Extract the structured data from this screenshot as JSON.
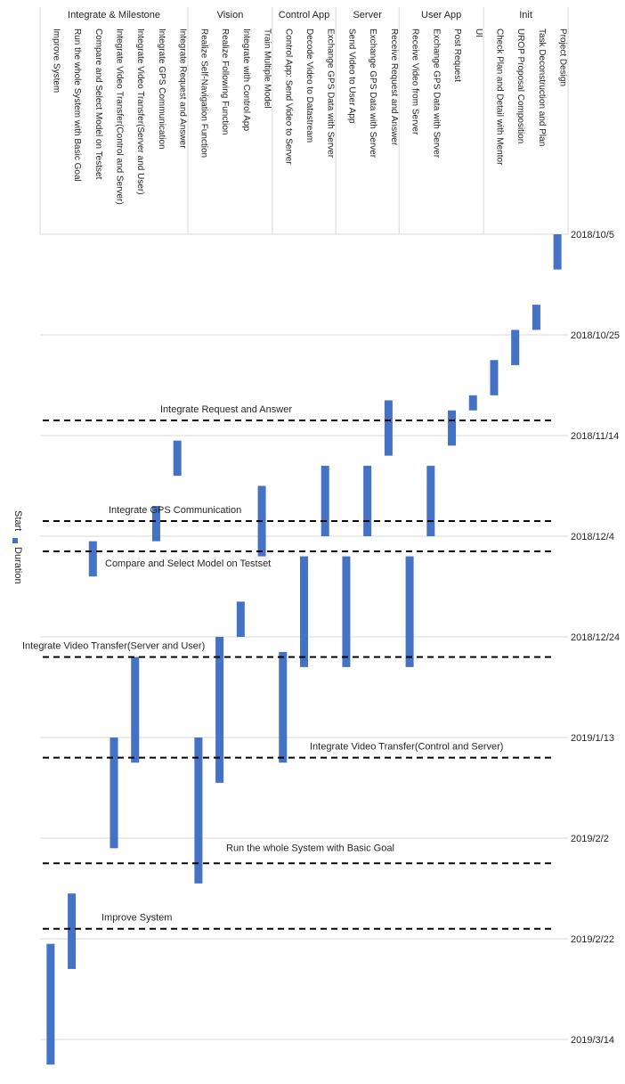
{
  "chart_data": {
    "type": "bar",
    "orientation": "vertical-timeline",
    "legend": {
      "placement": "left",
      "entries": [
        "Start",
        "Duration"
      ]
    },
    "colors": {
      "duration": "#4472C4",
      "grid": "#d9d9d9",
      "milestone_line": "#000000"
    },
    "date_axis": {
      "ticks": [
        "2018/10/5",
        "2018/10/25",
        "2018/11/14",
        "2018/12/4",
        "2018/12/24",
        "2019/1/13",
        "2019/2/2",
        "2019/2/22",
        "2019/3/14"
      ],
      "range": [
        "2018-10-05",
        "2019-03-17"
      ],
      "grid": true
    },
    "groups": [
      {
        "name": "Integrate & Milestone",
        "tasks": [
          "Improve System",
          "Run the whole System with Basic Goal",
          "Compare and Select Model on Testset",
          "Integrate Video Transfer(Control and Server)",
          "Integrate Video Transfer(Server and User)",
          "Integrate GPS Communication",
          "Integrate Request and Answer"
        ]
      },
      {
        "name": "Vision",
        "tasks": [
          "Realize Self-Navigation Function",
          "Realize Following Function",
          "Integrate with Control App",
          "Train Multiple Model"
        ]
      },
      {
        "name": "Control App",
        "tasks": [
          "Control App: Send Video to Server",
          "Decode Video to Datastream",
          "Exchange GPS Data with Server"
        ]
      },
      {
        "name": "Server",
        "tasks": [
          "Send Video to User App",
          "Exchange GPS Data with Server",
          "Receive Request and Answer"
        ]
      },
      {
        "name": "User App",
        "tasks": [
          "Receive Video from Server",
          "Exchange GPS Data with Server",
          "Post Request",
          "UI"
        ]
      },
      {
        "name": "Init",
        "tasks": [
          "Check Plan and Detail with Mentor",
          "UROP Proposal Composition",
          "Task Deconstruction and Plan",
          "Project Design"
        ]
      }
    ],
    "series": [
      {
        "name": "Start",
        "values": [
          "2019-02-23",
          "2019-02-13",
          "2018-12-05",
          "2019-01-13",
          "2018-12-28",
          "2018-11-28",
          "2018-11-15",
          "2019-01-13",
          "2018-12-24",
          "2018-12-17",
          "2018-11-24",
          "2018-12-27",
          "2018-12-08",
          "2018-11-20",
          "2018-12-08",
          "2018-11-20",
          "2018-11-07",
          "2018-12-08",
          "2018-11-20",
          "2018-11-09",
          "2018-11-06",
          "2018-10-30",
          "2018-10-24",
          "2018-10-19",
          "2018-10-05"
        ]
      },
      {
        "name": "Duration",
        "values": [
          24,
          15,
          7,
          22,
          21,
          7,
          7,
          29,
          29,
          7,
          14,
          22,
          22,
          14,
          22,
          14,
          11,
          22,
          14,
          7,
          3,
          7,
          7,
          5,
          7
        ]
      }
    ],
    "milestones": [
      {
        "label": "Integrate Request and Answer",
        "date": "2018-11-11"
      },
      {
        "label": "Integrate GPS Communication",
        "date": "2018-12-01"
      },
      {
        "label": "Compare and Select Model on Testset",
        "date": "2018-12-07"
      },
      {
        "label": "Integrate Video Transfer(Server and User)",
        "date": "2018-12-28"
      },
      {
        "label": "Integrate Video Transfer(Control and Server)",
        "date": "2019-01-17"
      },
      {
        "label": "Run the whole System with Basic Goal",
        "date": "2019-02-07"
      },
      {
        "label": "Improve System",
        "date": "2019-02-20"
      }
    ]
  }
}
